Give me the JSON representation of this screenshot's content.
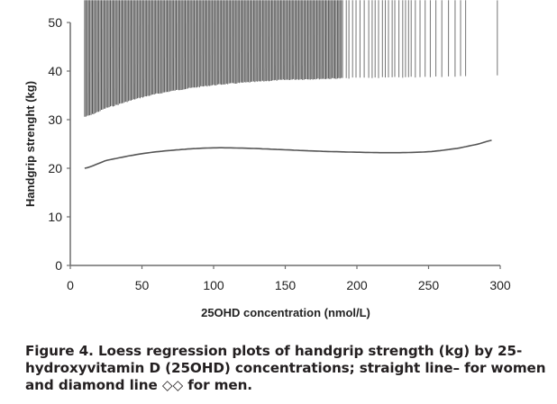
{
  "figure": {
    "caption": "Figure 4. Loess regression plots of handgrip strength (kg) by 25-hydroxyvitamin D (25OHD) concentrations; straight line– for women and diamond line ◇◇ for men."
  },
  "colors": {
    "axis": "#6e6e6e",
    "women_line": "#555555",
    "men_diamond_stroke": "#3a3a3a",
    "text": "#222222"
  },
  "chart_data": {
    "type": "line",
    "title": "",
    "xlabel": "25OHD concentration (nmol/L)",
    "ylabel": "Handgrip strenght (kg)",
    "xlim": [
      0,
      300
    ],
    "ylim": [
      0,
      50
    ],
    "xticks": [
      0,
      50,
      100,
      150,
      200,
      250,
      300
    ],
    "yticks": [
      0,
      10,
      20,
      30,
      40,
      50
    ],
    "grid": false,
    "legend": "none (described in caption)",
    "series": [
      {
        "name": "Women",
        "style": "solid line",
        "x": [
          10,
          25,
          50,
          75,
          100,
          125,
          150,
          175,
          200,
          225,
          250,
          270,
          285,
          295
        ],
        "y": [
          20.0,
          21.6,
          23.0,
          23.8,
          24.2,
          24.1,
          23.8,
          23.5,
          23.3,
          23.2,
          23.4,
          24.1,
          25.0,
          25.8
        ]
      },
      {
        "name": "Men",
        "style": "diamond markers",
        "x": [
          10,
          25,
          50,
          75,
          100,
          125,
          150,
          175,
          200,
          225,
          250,
          265,
          280,
          298
        ],
        "y": [
          30.0,
          31.8,
          34.0,
          35.5,
          36.5,
          37.1,
          37.6,
          37.8,
          38.0,
          38.1,
          38.2,
          38.3,
          38.3,
          38.5
        ]
      }
    ]
  }
}
